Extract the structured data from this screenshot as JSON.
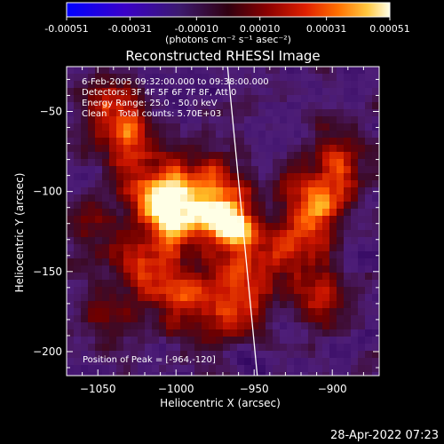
{
  "chart_data": {
    "type": "heatmap",
    "title": "Reconstructed RHESSI Image",
    "xlabel": "Heliocentric X (arcsec)",
    "ylabel": "Heliocentric Y (arcsec)",
    "xlim": [
      -1070,
      -870
    ],
    "ylim": [
      -215,
      -22
    ],
    "x_ticks": [
      -1050,
      -1000,
      -950,
      -900
    ],
    "x_tick_labels": [
      "−1050",
      "−1000",
      "−950",
      "−900"
    ],
    "y_ticks": [
      -50,
      -100,
      -150,
      -200
    ],
    "y_tick_labels": [
      "−50",
      "−100",
      "−150",
      "−200"
    ],
    "colorbar": {
      "range": [
        -0.00051,
        0.00051
      ],
      "tick_values": [
        -0.00051,
        -0.00031,
        -0.0001,
        0.0001,
        0.00031,
        0.00051
      ],
      "tick_labels": [
        "-0.00051",
        "-0.00031",
        "-0.00010",
        "0.00010",
        "0.00031",
        "0.00051"
      ],
      "unit_label": "(photons cm⁻² s⁻¹ asec⁻²)"
    },
    "annotations": [
      "6-Feb-2005 09:32:00.000 to 09:38:00.000",
      "Detectors: 3F 4F 5F 6F 7F 8F, Att 0",
      "Energy Range: 25.0 - 50.0 keV",
      "Clean    Total counts: 5.70E+03"
    ],
    "peak_label": "Position of Peak = [-964,-120]",
    "peak": [
      -964,
      -120
    ],
    "sources": [
      {
        "x": -964,
        "y": -120,
        "amp": 1.0
      },
      {
        "x": -997,
        "y": -113,
        "amp": 0.78
      },
      {
        "x": -1013,
        "y": -103,
        "amp": 0.55
      },
      {
        "x": -975,
        "y": -90,
        "amp": 0.45
      },
      {
        "x": -958,
        "y": -150,
        "amp": 0.5
      },
      {
        "x": -1042,
        "y": -45,
        "amp": 0.45
      },
      {
        "x": -1030,
        "y": -70,
        "amp": 0.5
      },
      {
        "x": -1015,
        "y": -150,
        "amp": 0.55
      },
      {
        "x": -990,
        "y": -170,
        "amp": 0.45
      },
      {
        "x": -960,
        "y": -175,
        "amp": 0.35
      },
      {
        "x": -912,
        "y": -108,
        "amp": 0.65
      },
      {
        "x": -895,
        "y": -80,
        "amp": 0.45
      },
      {
        "x": -925,
        "y": -135,
        "amp": 0.45
      },
      {
        "x": -905,
        "y": -165,
        "amp": 0.35
      },
      {
        "x": -1055,
        "y": -125,
        "amp": 0.35
      },
      {
        "x": -1045,
        "y": -180,
        "amp": 0.3
      }
    ],
    "limb_line": [
      [
        -967,
        -22
      ],
      [
        -948,
        -215
      ]
    ],
    "timestamp": "28-Apr-2022 07:23"
  }
}
